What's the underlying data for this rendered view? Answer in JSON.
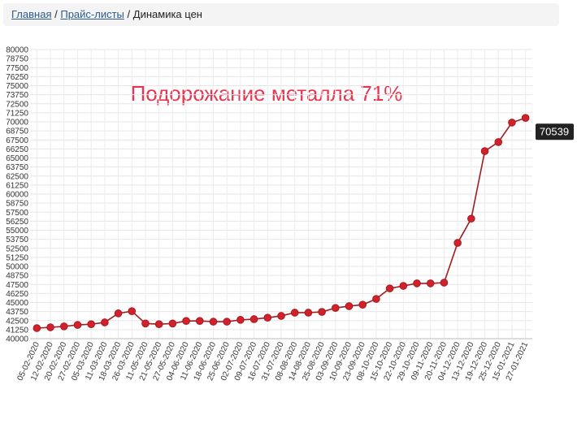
{
  "breadcrumb": {
    "items": [
      "Главная",
      "Прайс-листы",
      "Динамика цен"
    ],
    "separator": "/"
  },
  "chart_data": {
    "type": "line",
    "annotation": "Подорожание металла 71%",
    "categories": [
      "05-02-2020",
      "12-02-2020",
      "20-02-2020",
      "27-02-2020",
      "05-03-2020",
      "11-03-2020",
      "18-03-2020",
      "26-03-2020",
      "11-05-2020",
      "21-05-2020",
      "27-05-2020",
      "04-06-2020",
      "11-06-2020",
      "18-06-2020",
      "25-06-2020",
      "02-07-2020",
      "09-07-2020",
      "16-07-2020",
      "31-07-2020",
      "08-08-2020",
      "14-08-2020",
      "25-08-2020",
      "03-09-2020",
      "10-09-2020",
      "23-09-2020",
      "08-10-2020",
      "15-10-2020",
      "22-10-2020",
      "29-10-2020",
      "09-11-2020",
      "20-11-2020",
      "04-12-2020",
      "13-12-2020",
      "19-12-2020",
      "25-12-2020",
      "15-01-2021",
      "27-01-2021"
    ],
    "series": [
      {
        "color": "#a11b1f",
        "marker_color": "#d4202b",
        "values": [
          41460,
          41570,
          41700,
          41900,
          42000,
          42250,
          43500,
          43800,
          42100,
          42000,
          42100,
          42450,
          42450,
          42350,
          42350,
          42600,
          42700,
          42900,
          43150,
          43600,
          43600,
          43700,
          44250,
          44500,
          44700,
          45500,
          46950,
          47300,
          47650,
          47650,
          47750,
          53250,
          56600,
          65950,
          67200,
          69900,
          70539
        ]
      }
    ],
    "label_last": true,
    "ylim": [
      40000,
      80000
    ],
    "yticks": [
      40000,
      41250,
      42500,
      43750,
      45000,
      46250,
      47500,
      48750,
      50000,
      51250,
      52500,
      53750,
      55000,
      56250,
      57500,
      58750,
      60000,
      61250,
      62500,
      63750,
      65000,
      66250,
      67500,
      68750,
      70000,
      71250,
      72500,
      73750,
      75000,
      76250,
      77500,
      78750,
      80000
    ],
    "grid": true
  }
}
